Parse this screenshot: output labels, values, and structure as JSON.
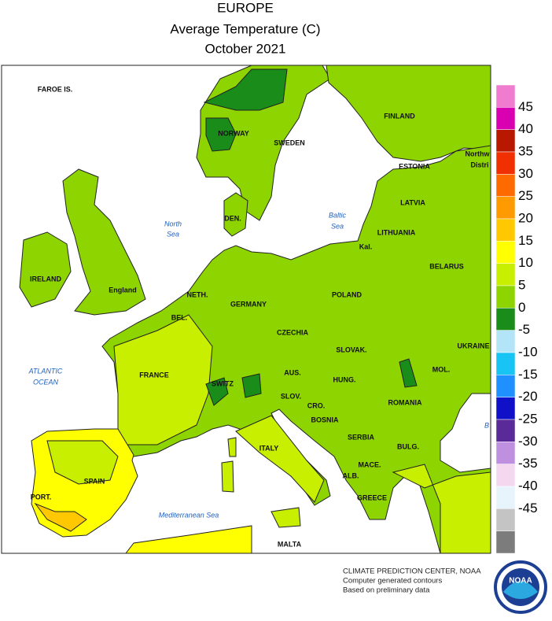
{
  "header": {
    "title": "EUROPE",
    "subtitle": "Average Temperature (C)",
    "date": "October 2021"
  },
  "map": {
    "labels": [
      "FAROE IS.",
      "NORWAY",
      "SWEDEN",
      "FINLAND",
      "ESTONIA",
      "Northw",
      "Distri",
      "LATVIA",
      "LITHUANIA",
      "BELARUS",
      "North",
      "Sea",
      "Baltic",
      "Sea",
      "DEN.",
      "Kal.",
      "IRELAND",
      "England",
      "NETH.",
      "GERMANY",
      "POLAND",
      "BEL.",
      "CZECHIA",
      "SLOVAK.",
      "UKRAINE",
      "ATLANTIC",
      "OCEAN",
      "FRANCE",
      "AUS.",
      "HUNG.",
      "MOL.",
      "SWITZ",
      "SLOV.",
      "ROMANIA",
      "CRO.",
      "BOSNIA",
      "ITALY",
      "SERBIA",
      "BULG.",
      "MACE.",
      "ALB.",
      "SPAIN",
      "PORT.",
      "GREECE",
      "Mediterranean Sea",
      "MALTA",
      "B"
    ]
  },
  "legend": {
    "ticks": [
      45,
      40,
      35,
      30,
      25,
      20,
      15,
      10,
      5,
      0,
      -5,
      -10,
      -15,
      -20,
      -25,
      -30,
      -35,
      -40,
      -45
    ],
    "colors": [
      "#f07cd0",
      "#d800b0",
      "#b81800",
      "#f03000",
      "#ff6a00",
      "#ff9a00",
      "#ffc800",
      "#ffff00",
      "#c8ee00",
      "#8ed400",
      "#1a8c1a",
      "#b4e4f8",
      "#18c4f4",
      "#1e90ff",
      "#1010c8",
      "#5a2a98",
      "#c090e0",
      "#f4d8f0",
      "#e8f4fc",
      "#c4c4c4",
      "#7c7c7c"
    ]
  },
  "credits": [
    "CLIMATE PREDICTION CENTER, NOAA",
    "Computer generated contours",
    "Based on preliminary data"
  ],
  "logo": "NOAA"
}
